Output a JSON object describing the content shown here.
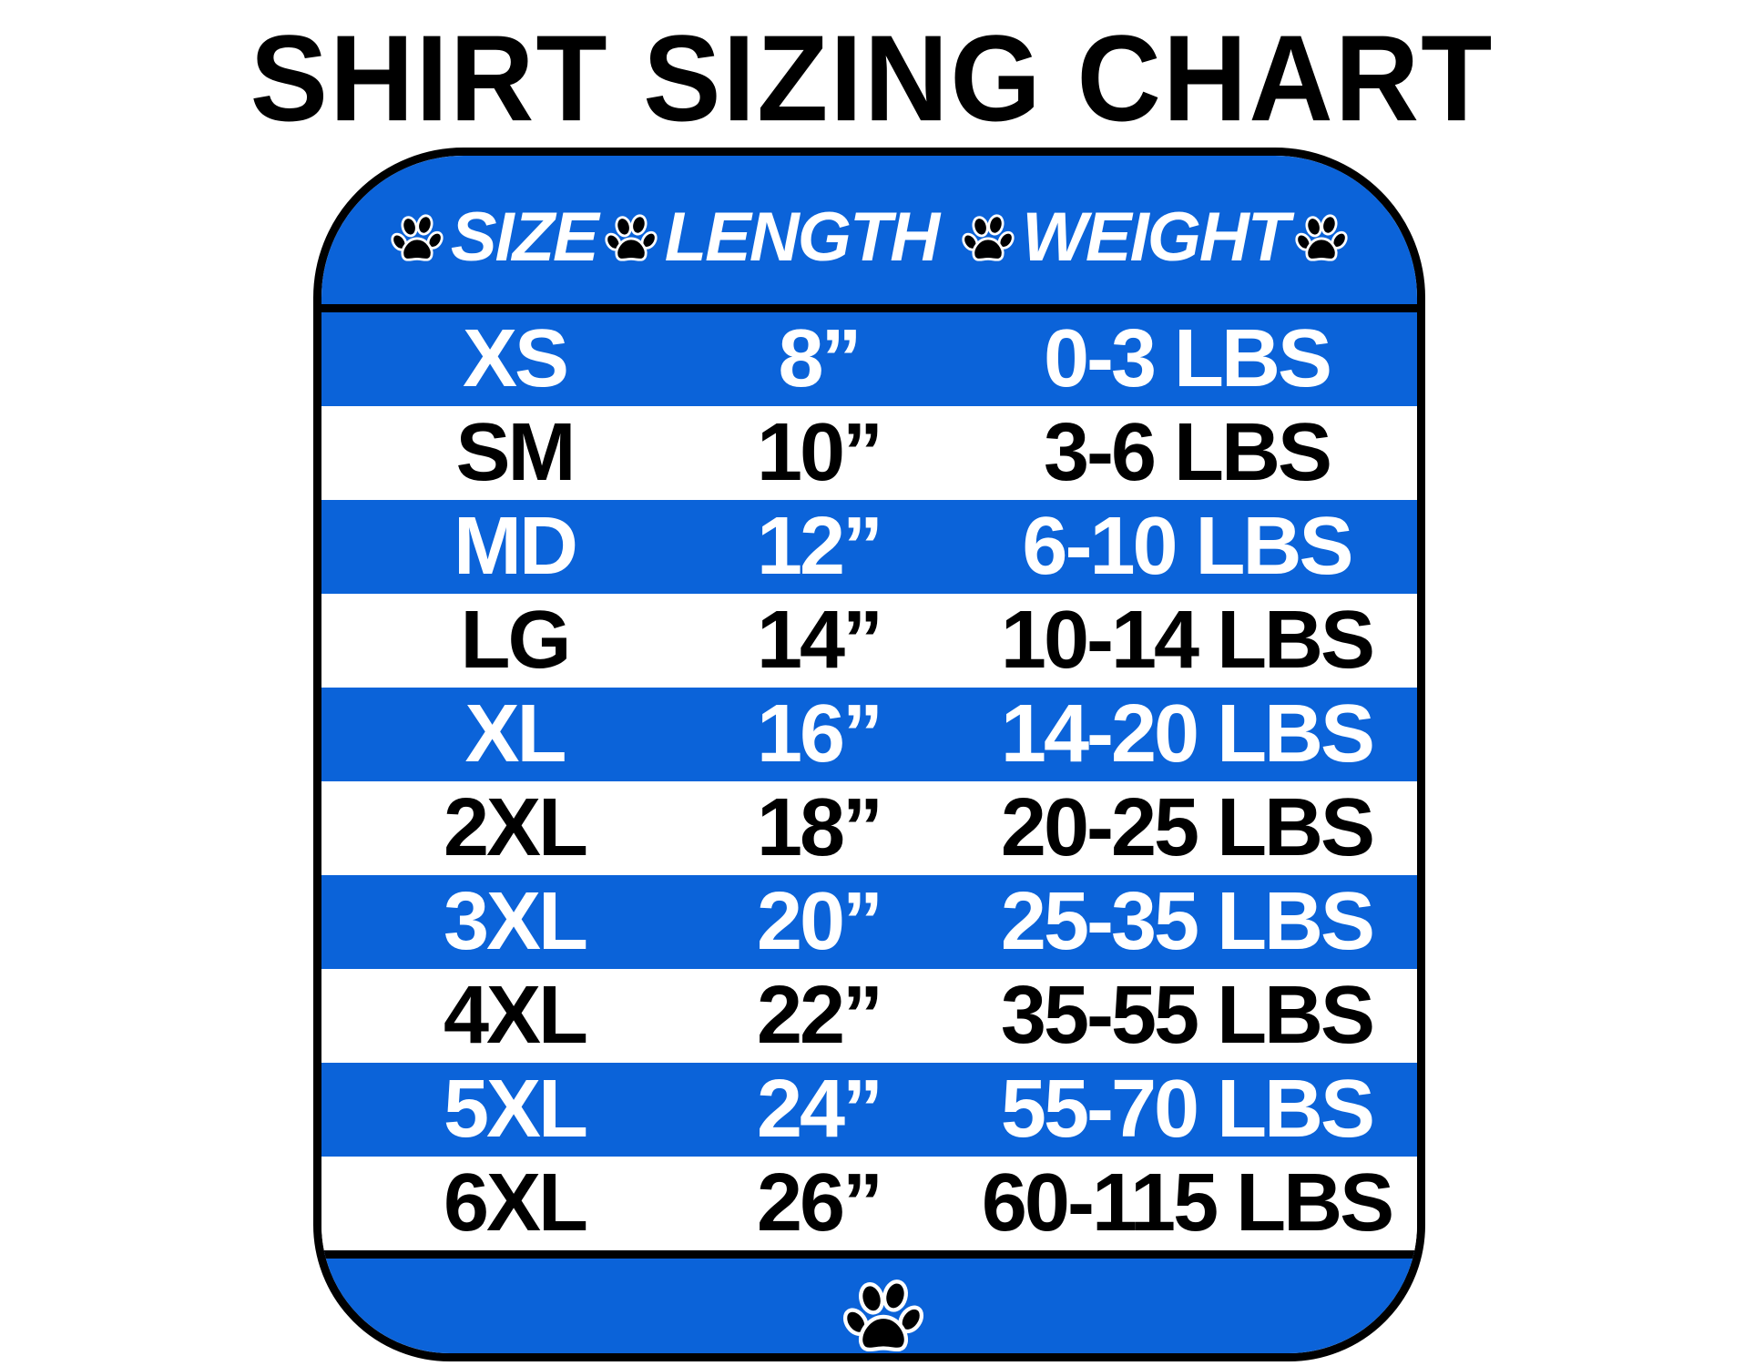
{
  "title": "SHIRT SIZING CHART",
  "colors": {
    "blue": "#0b63d9",
    "border": "#000000",
    "text_on_blue": "#ffffff",
    "text_on_white": "#000000"
  },
  "icons": {
    "decoration": "paw-print-icon"
  },
  "headers": [
    "SIZE",
    "LENGTH",
    "WEIGHT"
  ],
  "rows": [
    {
      "size": "XS",
      "length": "8”",
      "weight": "0-3 LBS"
    },
    {
      "size": "SM",
      "length": "10”",
      "weight": "3-6 LBS"
    },
    {
      "size": "MD",
      "length": "12”",
      "weight": "6-10 LBS"
    },
    {
      "size": "LG",
      "length": "14”",
      "weight": "10-14 LBS"
    },
    {
      "size": "XL",
      "length": "16”",
      "weight": "14-20 LBS"
    },
    {
      "size": "2XL",
      "length": "18”",
      "weight": "20-25 LBS"
    },
    {
      "size": "3XL",
      "length": "20”",
      "weight": "25-35 LBS"
    },
    {
      "size": "4XL",
      "length": "22”",
      "weight": "35-55 LBS"
    },
    {
      "size": "5XL",
      "length": "24”",
      "weight": "55-70 LBS"
    },
    {
      "size": "6XL",
      "length": "26”",
      "weight": "60-115 LBS"
    }
  ]
}
